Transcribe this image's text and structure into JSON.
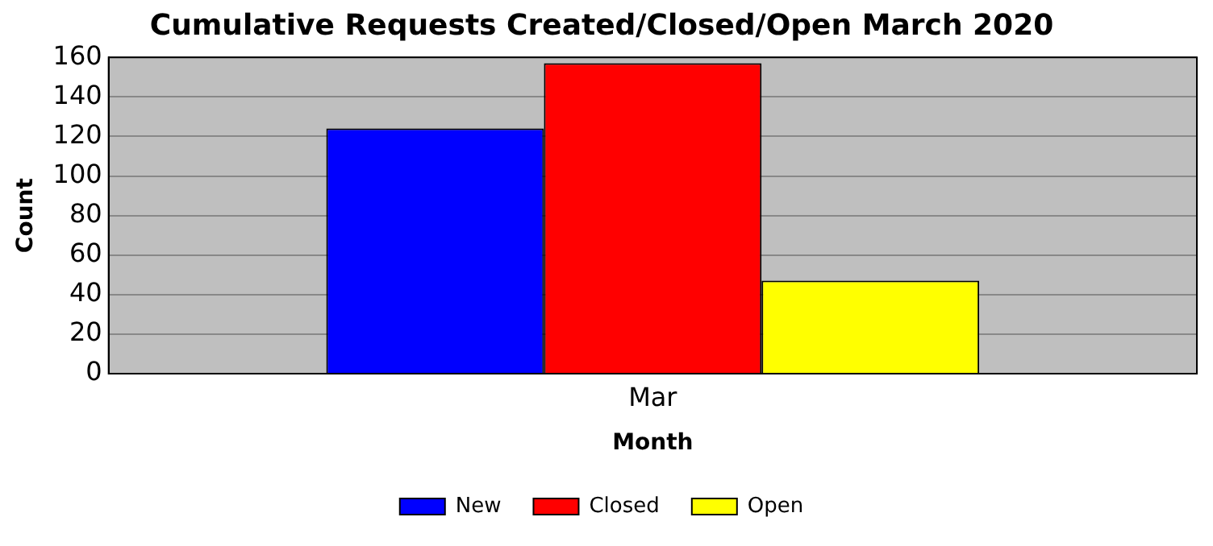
{
  "chart_data": {
    "type": "bar",
    "title": "Cumulative Requests Created/Closed/Open March 2020",
    "xlabel": "Month",
    "ylabel": "Count",
    "categories": [
      "Mar"
    ],
    "series": [
      {
        "name": "New",
        "color": "#0000ff",
        "values": [
          124
        ]
      },
      {
        "name": "Closed",
        "color": "#ff0000",
        "values": [
          157
        ]
      },
      {
        "name": "Open",
        "color": "#ffff00",
        "values": [
          47
        ]
      }
    ],
    "ylim": [
      0,
      160
    ],
    "yticks": [
      0,
      20,
      40,
      60,
      80,
      100,
      120,
      140,
      160
    ],
    "grid": "y",
    "legend": "bottom"
  }
}
